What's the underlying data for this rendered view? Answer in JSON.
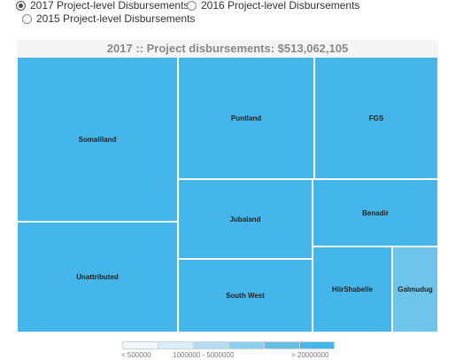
{
  "controls": {
    "options": [
      {
        "label": "2017 Project-level Disbursements",
        "checked": true
      },
      {
        "label": "2016 Project-level Disbursements",
        "checked": false
      },
      {
        "label": "2015 Project-level Disbursements",
        "checked": false
      }
    ]
  },
  "chart_data": {
    "type": "treemap",
    "title": "2017 :: Project disbursements: $513,062,105",
    "total": 513062105,
    "tiles": [
      {
        "name": "Somaliland"
      },
      {
        "name": "Unattributed"
      },
      {
        "name": "Puntland"
      },
      {
        "name": "FGS"
      },
      {
        "name": "Jubaland"
      },
      {
        "name": "Benadir"
      },
      {
        "name": "South West"
      },
      {
        "name": "HiirShabelle"
      },
      {
        "name": "Galmudug"
      }
    ],
    "legend": {
      "colors": [
        "#f0f8fe",
        "#d8eefb",
        "#b2def4",
        "#8ccfee",
        "#65bfe7",
        "#45b6e9"
      ],
      "labels": [
        "< 500000",
        "1000000 - 5000000",
        "> 20000000"
      ]
    },
    "colors": {
      "dark_tile": "#45b6e9",
      "light_tile": "#6dc5ec"
    }
  }
}
